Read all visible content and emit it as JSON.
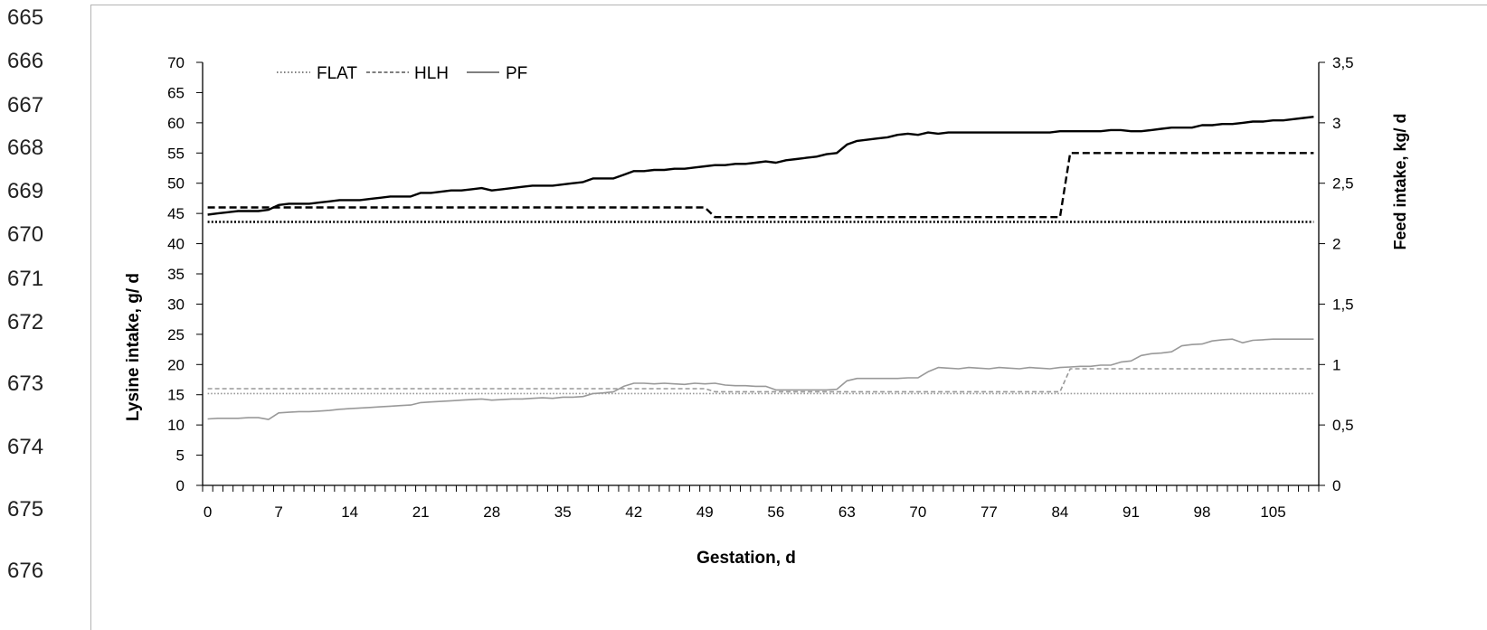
{
  "page": {
    "line_numbers": [
      "665",
      "666",
      "667",
      "668",
      "669",
      "670",
      "671",
      "672",
      "673",
      "674",
      "675",
      "676"
    ]
  },
  "chart_data": {
    "type": "line",
    "xlabel": "Gestation, d",
    "ylabel": "Lysine intake, g/ d",
    "y2label": "Feed intake, kg/ d",
    "grid": false,
    "x": [
      0,
      1,
      2,
      3,
      4,
      5,
      6,
      7,
      8,
      9,
      10,
      11,
      12,
      13,
      14,
      15,
      16,
      17,
      18,
      19,
      20,
      21,
      22,
      23,
      24,
      25,
      26,
      27,
      28,
      29,
      30,
      31,
      32,
      33,
      34,
      35,
      36,
      37,
      38,
      39,
      40,
      41,
      42,
      43,
      44,
      45,
      46,
      47,
      48,
      49,
      50,
      51,
      52,
      53,
      54,
      55,
      56,
      57,
      58,
      59,
      60,
      61,
      62,
      63,
      64,
      65,
      66,
      67,
      68,
      69,
      70,
      71,
      72,
      73,
      74,
      75,
      76,
      77,
      78,
      79,
      80,
      81,
      82,
      83,
      84,
      85,
      86,
      87,
      88,
      89,
      90,
      91,
      92,
      93,
      94,
      95,
      96,
      97,
      98,
      99,
      100,
      101,
      102,
      103,
      104,
      105,
      106,
      107,
      108,
      109
    ],
    "x_tick_values": [
      0,
      7,
      14,
      21,
      28,
      35,
      42,
      49,
      56,
      63,
      70,
      77,
      84,
      91,
      98,
      105
    ],
    "x_tick_labels": [
      "0",
      "7",
      "14",
      "21",
      "28",
      "35",
      "42",
      "49",
      "56",
      "63",
      "70",
      "77",
      "84",
      "91",
      "98",
      "105"
    ],
    "ylim": [
      0,
      70
    ],
    "y_tick_values": [
      0,
      5,
      10,
      15,
      20,
      25,
      30,
      35,
      40,
      45,
      50,
      55,
      60,
      65,
      70
    ],
    "y_tick_labels": [
      "0",
      "5",
      "10",
      "15",
      "20",
      "25",
      "30",
      "35",
      "40",
      "45",
      "50",
      "55",
      "60",
      "65",
      "70"
    ],
    "y2lim": [
      0,
      3.5
    ],
    "y2_tick_values": [
      0,
      0.5,
      1,
      1.5,
      2,
      2.5,
      3,
      3.5
    ],
    "y2_tick_labels": [
      "0",
      "0,5",
      "1",
      "1,5",
      "2",
      "2,5",
      "3",
      "3,5"
    ],
    "legend": {
      "placement": "top-left",
      "entries": [
        {
          "label": "FLAT",
          "line_style": "dotted"
        },
        {
          "label": "HLH",
          "line_style": "dashed"
        },
        {
          "label": "PF",
          "line_style": "solid"
        }
      ]
    },
    "series": [
      {
        "name": "FLAT",
        "axis": "right",
        "color": "#000000",
        "line_style": "dotted",
        "values": [
          2.18,
          2.18,
          2.18,
          2.18,
          2.18,
          2.18,
          2.18,
          2.18,
          2.18,
          2.18,
          2.18,
          2.18,
          2.18,
          2.18,
          2.18,
          2.18,
          2.18,
          2.18,
          2.18,
          2.18,
          2.18,
          2.18,
          2.18,
          2.18,
          2.18,
          2.18,
          2.18,
          2.18,
          2.18,
          2.18,
          2.18,
          2.18,
          2.18,
          2.18,
          2.18,
          2.18,
          2.18,
          2.18,
          2.18,
          2.18,
          2.18,
          2.18,
          2.18,
          2.18,
          2.18,
          2.18,
          2.18,
          2.18,
          2.18,
          2.18,
          2.18,
          2.18,
          2.18,
          2.18,
          2.18,
          2.18,
          2.18,
          2.18,
          2.18,
          2.18,
          2.18,
          2.18,
          2.18,
          2.18,
          2.18,
          2.18,
          2.18,
          2.18,
          2.18,
          2.18,
          2.18,
          2.18,
          2.18,
          2.18,
          2.18,
          2.18,
          2.18,
          2.18,
          2.18,
          2.18,
          2.18,
          2.18,
          2.18,
          2.18,
          2.18,
          2.18,
          2.18,
          2.18,
          2.18,
          2.18,
          2.18,
          2.18,
          2.18,
          2.18,
          2.18,
          2.18,
          2.18,
          2.18,
          2.18,
          2.18,
          2.18,
          2.18,
          2.18,
          2.18,
          2.18,
          2.18,
          2.18,
          2.18,
          2.18,
          2.18
        ]
      },
      {
        "name": "HLH",
        "axis": "right",
        "color": "#000000",
        "line_style": "dashed",
        "values": [
          2.3,
          2.3,
          2.3,
          2.3,
          2.3,
          2.3,
          2.3,
          2.3,
          2.3,
          2.3,
          2.3,
          2.3,
          2.3,
          2.3,
          2.3,
          2.3,
          2.3,
          2.3,
          2.3,
          2.3,
          2.3,
          2.3,
          2.3,
          2.3,
          2.3,
          2.3,
          2.3,
          2.3,
          2.3,
          2.3,
          2.3,
          2.3,
          2.3,
          2.3,
          2.3,
          2.3,
          2.3,
          2.3,
          2.3,
          2.3,
          2.3,
          2.3,
          2.3,
          2.3,
          2.3,
          2.3,
          2.3,
          2.3,
          2.3,
          2.3,
          2.22,
          2.22,
          2.22,
          2.22,
          2.22,
          2.22,
          2.22,
          2.22,
          2.22,
          2.22,
          2.22,
          2.22,
          2.22,
          2.22,
          2.22,
          2.22,
          2.22,
          2.22,
          2.22,
          2.22,
          2.22,
          2.22,
          2.22,
          2.22,
          2.22,
          2.22,
          2.22,
          2.22,
          2.22,
          2.22,
          2.22,
          2.22,
          2.22,
          2.22,
          2.22,
          2.75,
          2.75,
          2.75,
          2.75,
          2.75,
          2.75,
          2.75,
          2.75,
          2.75,
          2.75,
          2.75,
          2.75,
          2.75,
          2.75,
          2.75,
          2.75,
          2.75,
          2.75,
          2.75,
          2.75,
          2.75,
          2.75,
          2.75,
          2.75,
          2.75
        ]
      },
      {
        "name": "PF",
        "axis": "right",
        "color": "#000000",
        "line_style": "solid",
        "values": [
          2.24,
          2.25,
          2.26,
          2.27,
          2.27,
          2.27,
          2.28,
          2.32,
          2.33,
          2.33,
          2.33,
          2.34,
          2.35,
          2.36,
          2.36,
          2.36,
          2.37,
          2.38,
          2.39,
          2.39,
          2.39,
          2.42,
          2.42,
          2.43,
          2.44,
          2.44,
          2.45,
          2.46,
          2.44,
          2.45,
          2.46,
          2.47,
          2.48,
          2.48,
          2.48,
          2.49,
          2.5,
          2.51,
          2.54,
          2.54,
          2.54,
          2.57,
          2.6,
          2.6,
          2.61,
          2.61,
          2.62,
          2.62,
          2.63,
          2.64,
          2.65,
          2.65,
          2.66,
          2.66,
          2.67,
          2.68,
          2.67,
          2.69,
          2.7,
          2.71,
          2.72,
          2.74,
          2.75,
          2.82,
          2.85,
          2.86,
          2.87,
          2.88,
          2.9,
          2.91,
          2.9,
          2.92,
          2.91,
          2.92,
          2.92,
          2.92,
          2.92,
          2.92,
          2.92,
          2.92,
          2.92,
          2.92,
          2.92,
          2.92,
          2.93,
          2.93,
          2.93,
          2.93,
          2.93,
          2.94,
          2.94,
          2.93,
          2.93,
          2.94,
          2.95,
          2.96,
          2.96,
          2.96,
          2.98,
          2.98,
          2.99,
          2.99,
          3.0,
          3.01,
          3.01,
          3.02,
          3.02,
          3.03,
          3.04,
          3.05
        ]
      },
      {
        "name": "FLAT",
        "axis": "left",
        "color": "#999999",
        "line_style": "dotted",
        "values": [
          15.2,
          15.2,
          15.2,
          15.2,
          15.2,
          15.2,
          15.2,
          15.2,
          15.2,
          15.2,
          15.2,
          15.2,
          15.2,
          15.2,
          15.2,
          15.2,
          15.2,
          15.2,
          15.2,
          15.2,
          15.2,
          15.2,
          15.2,
          15.2,
          15.2,
          15.2,
          15.2,
          15.2,
          15.2,
          15.2,
          15.2,
          15.2,
          15.2,
          15.2,
          15.2,
          15.2,
          15.2,
          15.2,
          15.2,
          15.2,
          15.2,
          15.2,
          15.2,
          15.2,
          15.2,
          15.2,
          15.2,
          15.2,
          15.2,
          15.2,
          15.2,
          15.2,
          15.2,
          15.2,
          15.2,
          15.2,
          15.2,
          15.2,
          15.2,
          15.2,
          15.2,
          15.2,
          15.2,
          15.2,
          15.2,
          15.2,
          15.2,
          15.2,
          15.2,
          15.2,
          15.2,
          15.2,
          15.2,
          15.2,
          15.2,
          15.2,
          15.2,
          15.2,
          15.2,
          15.2,
          15.2,
          15.2,
          15.2,
          15.2,
          15.2,
          15.2,
          15.2,
          15.2,
          15.2,
          15.2,
          15.2,
          15.2,
          15.2,
          15.2,
          15.2,
          15.2,
          15.2,
          15.2,
          15.2,
          15.2,
          15.2,
          15.2,
          15.2,
          15.2,
          15.2,
          15.2,
          15.2,
          15.2,
          15.2,
          15.2
        ]
      },
      {
        "name": "HLH",
        "axis": "left",
        "color": "#999999",
        "line_style": "dashed",
        "values": [
          16.0,
          16.0,
          16.0,
          16.0,
          16.0,
          16.0,
          16.0,
          16.0,
          16.0,
          16.0,
          16.0,
          16.0,
          16.0,
          16.0,
          16.0,
          16.0,
          16.0,
          16.0,
          16.0,
          16.0,
          16.0,
          16.0,
          16.0,
          16.0,
          16.0,
          16.0,
          16.0,
          16.0,
          16.0,
          16.0,
          16.0,
          16.0,
          16.0,
          16.0,
          16.0,
          16.0,
          16.0,
          16.0,
          16.0,
          16.0,
          16.0,
          16.0,
          16.0,
          16.0,
          16.0,
          16.0,
          16.0,
          16.0,
          16.0,
          16.0,
          15.5,
          15.5,
          15.5,
          15.5,
          15.5,
          15.5,
          15.5,
          15.5,
          15.5,
          15.5,
          15.5,
          15.5,
          15.5,
          15.5,
          15.5,
          15.5,
          15.5,
          15.5,
          15.5,
          15.5,
          15.5,
          15.5,
          15.5,
          15.5,
          15.5,
          15.5,
          15.5,
          15.5,
          15.5,
          15.5,
          15.5,
          15.5,
          15.5,
          15.5,
          15.5,
          19.3,
          19.3,
          19.3,
          19.3,
          19.3,
          19.3,
          19.3,
          19.3,
          19.3,
          19.3,
          19.3,
          19.3,
          19.3,
          19.3,
          19.3,
          19.3,
          19.3,
          19.3,
          19.3,
          19.3,
          19.3,
          19.3,
          19.3,
          19.3,
          19.3
        ]
      },
      {
        "name": "PF",
        "axis": "left",
        "color": "#999999",
        "line_style": "solid",
        "values": [
          11.0,
          11.1,
          11.1,
          11.1,
          11.2,
          11.2,
          10.9,
          12.0,
          12.1,
          12.2,
          12.2,
          12.3,
          12.4,
          12.6,
          12.7,
          12.8,
          12.9,
          13.0,
          13.1,
          13.2,
          13.3,
          13.7,
          13.8,
          13.9,
          14.0,
          14.1,
          14.2,
          14.3,
          14.1,
          14.2,
          14.3,
          14.3,
          14.4,
          14.5,
          14.4,
          14.6,
          14.6,
          14.7,
          15.2,
          15.3,
          15.5,
          16.4,
          16.9,
          16.9,
          16.8,
          16.9,
          16.8,
          16.7,
          16.9,
          16.8,
          16.9,
          16.6,
          16.5,
          16.5,
          16.4,
          16.4,
          15.8,
          15.8,
          15.8,
          15.8,
          15.8,
          15.8,
          15.9,
          17.3,
          17.7,
          17.7,
          17.7,
          17.7,
          17.7,
          17.8,
          17.8,
          18.8,
          19.5,
          19.4,
          19.3,
          19.5,
          19.4,
          19.3,
          19.5,
          19.4,
          19.3,
          19.5,
          19.4,
          19.3,
          19.5,
          19.6,
          19.7,
          19.7,
          19.9,
          19.9,
          20.4,
          20.6,
          21.5,
          21.8,
          21.9,
          22.1,
          23.1,
          23.3,
          23.4,
          23.9,
          24.1,
          24.2,
          23.6,
          24.0,
          24.1,
          24.2,
          24.2,
          24.2,
          24.2,
          24.2
        ]
      }
    ]
  }
}
